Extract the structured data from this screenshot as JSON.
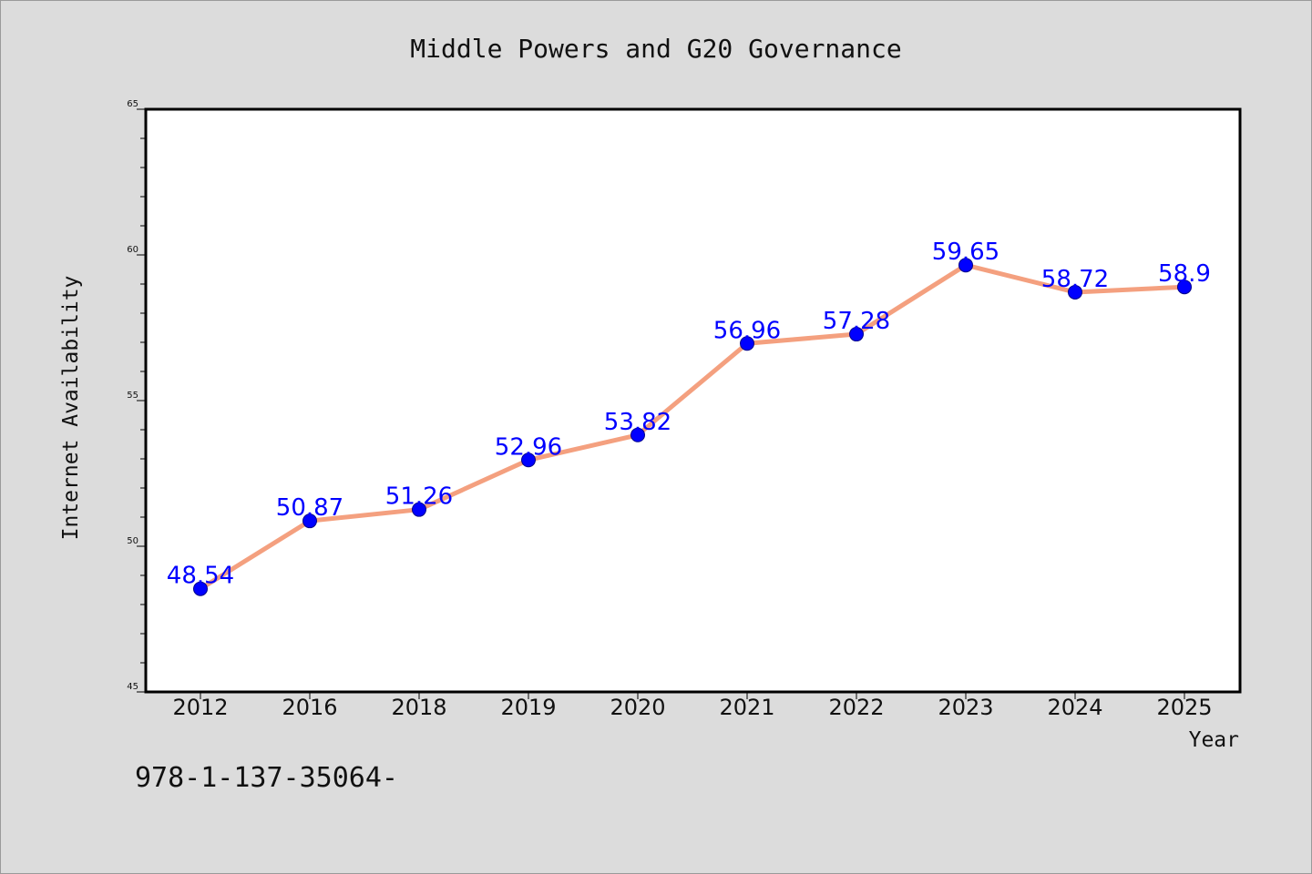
{
  "chart_data": {
    "type": "line",
    "title": "Middle Powers and G20 Governance",
    "xlabel": "Year",
    "ylabel": "Internet Availability",
    "categories": [
      "2012",
      "2016",
      "2018",
      "2019",
      "2020",
      "2021",
      "2022",
      "2023",
      "2024",
      "2025"
    ],
    "series": [
      {
        "values": [
          48.54,
          50.87,
          51.26,
          52.96,
          53.82,
          56.96,
          57.28,
          59.65,
          58.72,
          58.9
        ],
        "data_labels": [
          "48.54",
          "50.87",
          "51.26",
          "52.96",
          "53.82",
          "56.96",
          "57.28",
          "59.65",
          "58.72",
          "58.9"
        ]
      }
    ],
    "ylim": [
      45,
      65
    ],
    "yticks": [
      "45",
      "50",
      "55",
      "60",
      "65"
    ],
    "grid": false,
    "legend": "none",
    "colors": {
      "line": "#f4a07f",
      "marker": "#0000ff",
      "data_label": "#0000ff",
      "plot_background": "#ffffff",
      "figure_background": "#dcdcdc"
    }
  },
  "footer": {
    "isbn": "978-1-137-35064-"
  }
}
